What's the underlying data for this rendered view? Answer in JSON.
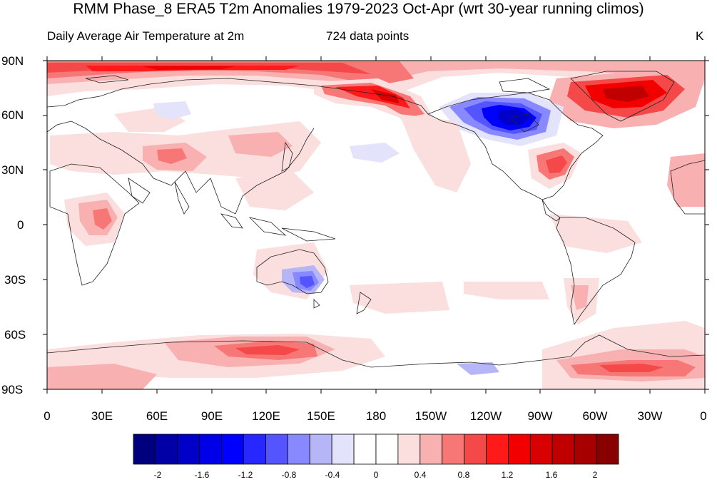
{
  "title": "RMM Phase_8 ERA5 T2m Anomalies 1979-2023 Oct-Apr (wrt 30-year running climos)",
  "subtitle_left": "Daily Average Air Temperature at 2m",
  "subtitle_center": "724 data points",
  "units": "K",
  "lat_labels": [
    "90N",
    "60N",
    "30N",
    "0",
    "30S",
    "60S",
    "90S"
  ],
  "lon_labels": [
    "0",
    "30E",
    "60E",
    "90E",
    "120E",
    "150E",
    "180",
    "150W",
    "120W",
    "90W",
    "60W",
    "30W",
    "0"
  ],
  "colorbar": {
    "labels": [
      "-2",
      "-1.6",
      "-1.2",
      "-0.8",
      "-0.4",
      "0",
      "0.4",
      "0.8",
      "1.2",
      "1.6",
      "2"
    ],
    "colors": [
      "#00007f",
      "#0000a6",
      "#0000c8",
      "#0000e8",
      "#0000ff",
      "#2727ff",
      "#5555ff",
      "#8888ff",
      "#b5b5f7",
      "#e3e3fb",
      "#ffffff",
      "#ffffff",
      "#fbdede",
      "#f8b0b0",
      "#f77777",
      "#f54848",
      "#ff1a1a",
      "#f20000",
      "#d80000",
      "#c00000",
      "#a80000",
      "#880000"
    ]
  },
  "anomaly_regions": [
    {
      "name": "arctic-warm-band",
      "sign": "warm"
    },
    {
      "name": "east-siberia-warm",
      "sign": "warm"
    },
    {
      "name": "greenland-warm",
      "sign": "warm"
    },
    {
      "name": "canada-cold",
      "sign": "cold"
    },
    {
      "name": "east-us-warm",
      "sign": "warm"
    },
    {
      "name": "australia-cold",
      "sign": "cold"
    },
    {
      "name": "antarctic-warm-pacific",
      "sign": "warm"
    },
    {
      "name": "antarctic-warm-atlantic",
      "sign": "warm"
    }
  ]
}
